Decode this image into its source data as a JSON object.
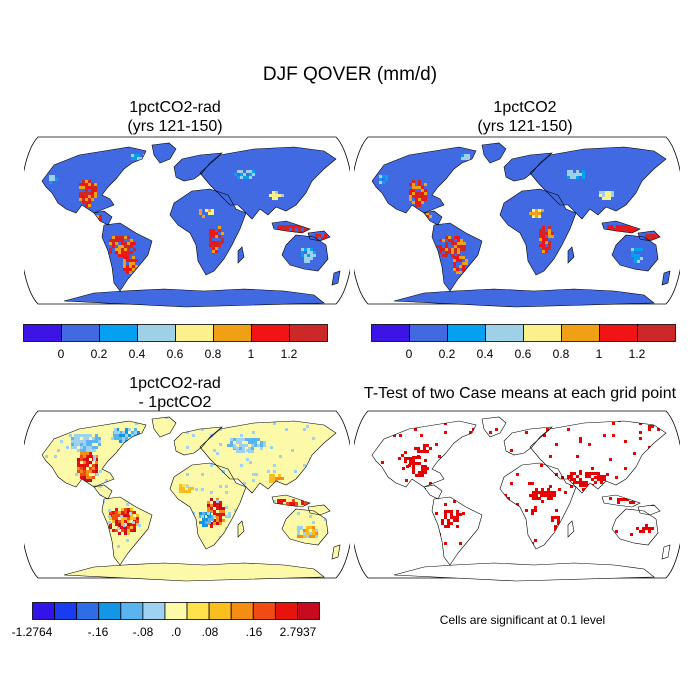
{
  "title": "DJF QOVER (mm/d)",
  "colors": {
    "seq8": [
      "#3c14e6",
      "#4169e1",
      "#05a0f0",
      "#9ed0e8",
      "#fcf08c",
      "#f0a014",
      "#f01414",
      "#cd2828"
    ],
    "div13": [
      "#3214e6",
      "#1a3cf0",
      "#2d6ee6",
      "#1496e6",
      "#5ab4f0",
      "#9ed2f0",
      "#fcfaa8",
      "#ffe14b",
      "#fabe1e",
      "#f58c14",
      "#f04b14",
      "#e6140a",
      "#c80a1e"
    ],
    "sig": "#e60000",
    "coast": "#000000"
  },
  "panels": {
    "a": {
      "title_line1": "1pctCO2-rad",
      "title_line2": "(yrs 121-150)"
    },
    "b": {
      "title_line1": "1pctCO2",
      "title_line2": "(yrs 121-150)"
    },
    "c": {
      "title_line1": "1pctCO2-rad",
      "title_line2": "- 1pctCO2"
    },
    "d": {
      "title": "T-Test of two Case means at each grid point",
      "note": "Cells are significant at 0.1 level"
    }
  },
  "chart_data": [
    {
      "type": "heatmap",
      "title": "1pctCO2-rad (yrs 121-150)",
      "projection": "Robinson",
      "colorbar_labels": [
        "0",
        "0.2",
        "0.4",
        "0.6",
        "0.8",
        "1",
        "1.2"
      ],
      "levels": [
        0,
        0.2,
        0.4,
        0.6,
        0.8,
        1,
        1.2
      ]
    },
    {
      "type": "heatmap",
      "title": "1pctCO2 (yrs 121-150)",
      "projection": "Robinson",
      "colorbar_labels": [
        "0",
        "0.2",
        "0.4",
        "0.6",
        "0.8",
        "1",
        "1.2"
      ],
      "levels": [
        0,
        0.2,
        0.4,
        0.6,
        0.8,
        1,
        1.2
      ]
    },
    {
      "type": "heatmap",
      "title": "1pctCO2-rad - 1pctCO2",
      "projection": "Robinson",
      "colorbar_labels": [
        "-1.2764",
        "-.16",
        "-.08",
        ".0",
        ".08",
        ".16",
        "2.7937"
      ],
      "colorbar_min": -1.2764,
      "colorbar_max": 2.7937
    },
    {
      "type": "heatmap",
      "title": "T-Test of two Case means at each grid point",
      "projection": "Robinson",
      "note": "Cells are significant at 0.1 level"
    }
  ]
}
